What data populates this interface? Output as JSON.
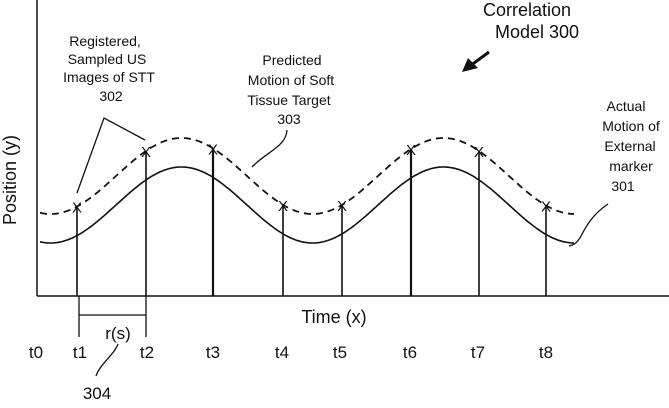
{
  "title": {
    "line1": "Correlation",
    "line2": "Model 300"
  },
  "axes": {
    "y_label": "Position (y)",
    "x_label": "Time (x)"
  },
  "annotations": {
    "registered": {
      "l1": "Registered,",
      "l2": "Sampled US",
      "l3": "Images of STT",
      "l4": "302"
    },
    "predicted": {
      "l1": "Predicted",
      "l2": "Motion of Soft",
      "l3": "Tissue Target",
      "l4": "303"
    },
    "actual": {
      "l1": "Actual",
      "l2": "Motion of",
      "l3": "External",
      "l4": "marker",
      "l5": "301"
    },
    "interval": {
      "label": "r(s)",
      "ref": "304"
    }
  },
  "time_labels": [
    "t0",
    "t1",
    "t2",
    "t3",
    "t4",
    "t5",
    "t6",
    "t7",
    "t8"
  ],
  "sample_marker": "X"
}
